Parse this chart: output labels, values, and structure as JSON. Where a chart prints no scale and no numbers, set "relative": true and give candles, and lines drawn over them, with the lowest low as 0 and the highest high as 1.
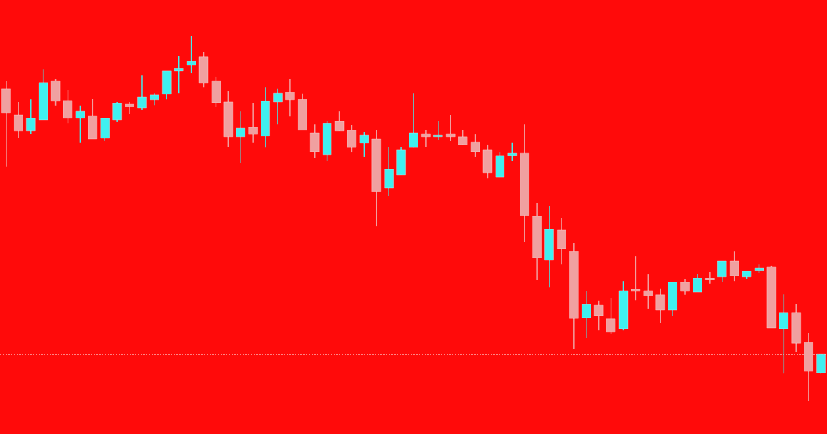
{
  "chart_data": {
    "type": "candlestick",
    "relative": true,
    "categories": [
      null,
      null,
      null,
      null,
      null,
      null,
      null,
      null,
      null,
      null,
      null,
      null,
      null,
      null,
      null,
      null,
      null,
      null,
      null,
      null,
      null,
      null,
      null,
      null,
      null,
      null,
      null,
      null,
      null,
      null,
      null,
      null,
      null,
      null,
      null,
      null,
      null,
      null,
      null,
      null,
      null,
      null,
      null,
      null,
      null,
      null,
      null,
      null,
      null,
      null,
      null,
      null,
      null,
      null,
      null,
      null,
      null,
      null,
      null,
      null,
      null,
      null,
      null,
      null,
      null,
      null,
      null
    ],
    "ohlc": [
      [
        0.855,
        0.877,
        0.642,
        0.789
      ],
      [
        0.783,
        0.819,
        0.719,
        0.74
      ],
      [
        0.74,
        0.826,
        0.73,
        0.774
      ],
      [
        0.77,
        0.909,
        0.77,
        0.872
      ],
      [
        0.877,
        0.883,
        0.808,
        0.821
      ],
      [
        0.823,
        0.853,
        0.76,
        0.774
      ],
      [
        0.774,
        0.808,
        0.708,
        0.794
      ],
      [
        0.781,
        0.828,
        0.717,
        0.717
      ],
      [
        0.719,
        0.774,
        0.713,
        0.774
      ],
      [
        0.77,
        0.819,
        0.764,
        0.815
      ],
      [
        0.813,
        0.819,
        0.787,
        0.806
      ],
      [
        0.802,
        0.892,
        0.796,
        0.832
      ],
      [
        0.825,
        0.843,
        0.809,
        0.838
      ],
      [
        0.84,
        0.904,
        0.826,
        0.904
      ],
      [
        0.904,
        0.945,
        0.843,
        0.911
      ],
      [
        0.919,
        1,
        0.898,
        0.93
      ],
      [
        0.942,
        0.955,
        0.858,
        0.87
      ],
      [
        0.877,
        0.887,
        0.804,
        0.817
      ],
      [
        0.819,
        0.849,
        0.696,
        0.723
      ],
      [
        0.723,
        0.794,
        0.651,
        0.747
      ],
      [
        0.749,
        0.815,
        0.708,
        0.73
      ],
      [
        0.725,
        0.858,
        0.694,
        0.821
      ],
      [
        0.819,
        0.855,
        0.758,
        0.843
      ],
      [
        0.845,
        0.883,
        0.779,
        0.825
      ],
      [
        0.826,
        0.842,
        0.742,
        0.742
      ],
      [
        0.734,
        0.758,
        0.666,
        0.683
      ],
      [
        0.674,
        0.766,
        0.657,
        0.76
      ],
      [
        0.766,
        0.794,
        0.74,
        0.74
      ],
      [
        0.742,
        0.755,
        0.681,
        0.694
      ],
      [
        0.706,
        0.736,
        0.668,
        0.728
      ],
      [
        0.717,
        0.743,
        0.479,
        0.574
      ],
      [
        0.583,
        0.696,
        0.562,
        0.634
      ],
      [
        0.619,
        0.696,
        0.619,
        0.687
      ],
      [
        0.694,
        0.843,
        0.694,
        0.734
      ],
      [
        0.732,
        0.743,
        0.696,
        0.723
      ],
      [
        0.723,
        0.766,
        0.715,
        0.728
      ],
      [
        0.732,
        0.783,
        0.713,
        0.723
      ],
      [
        0.723,
        0.743,
        0.702,
        0.702
      ],
      [
        0.709,
        0.73,
        0.668,
        0.683
      ],
      [
        0.687,
        0.702,
        0.609,
        0.625
      ],
      [
        0.613,
        0.681,
        0.613,
        0.672
      ],
      [
        0.672,
        0.708,
        0.658,
        0.679
      ],
      [
        0.679,
        0.758,
        0.434,
        0.508
      ],
      [
        0.506,
        0.543,
        0.33,
        0.392
      ],
      [
        0.385,
        0.534,
        0.311,
        0.47
      ],
      [
        0.468,
        0.502,
        0.375,
        0.417
      ],
      [
        0.409,
        0.432,
        0.142,
        0.226
      ],
      [
        0.228,
        0.302,
        0.172,
        0.264
      ],
      [
        0.262,
        0.274,
        0.194,
        0.234
      ],
      [
        0.225,
        0.281,
        0.183,
        0.189
      ],
      [
        0.198,
        0.328,
        0.194,
        0.302
      ],
      [
        0.306,
        0.396,
        0.275,
        0.3
      ],
      [
        0.302,
        0.347,
        0.253,
        0.289
      ],
      [
        0.291,
        0.308,
        0.213,
        0.249
      ],
      [
        0.249,
        0.325,
        0.234,
        0.325
      ],
      [
        0.325,
        0.334,
        0.291,
        0.3
      ],
      [
        0.298,
        0.347,
        0.298,
        0.336
      ],
      [
        0.336,
        0.353,
        0.321,
        0.332
      ],
      [
        0.34,
        0.383,
        0.326,
        0.383
      ],
      [
        0.383,
        0.409,
        0.328,
        0.343
      ],
      [
        0.34,
        0.355,
        0.334,
        0.355
      ],
      [
        0.357,
        0.375,
        0.349,
        0.364
      ],
      [
        0.368,
        0.37,
        0.2,
        0.2
      ],
      [
        0.198,
        0.292,
        0.075,
        0.242
      ],
      [
        0.242,
        0.264,
        0.134,
        0.158
      ],
      [
        0.16,
        0.185,
        0,
        0.081
      ],
      [
        0.077,
        0.128,
        0.075,
        0.128
      ]
    ],
    "colors": [
      "#f0a0a0",
      "#f0a0a0",
      "#40f0f0",
      "#40f0f0",
      "#f0a0a0",
      "#f0a0a0",
      "#40f0f0",
      "#f0a0a0",
      "#40f0f0",
      "#40f0f0",
      "#f0a0a0",
      "#40f0f0",
      "#40f0f0",
      "#40f0f0",
      "#40f0f0",
      "#40f0f0",
      "#f0a0a0",
      "#f0a0a0",
      "#f0a0a0",
      "#40f0f0",
      "#f0a0a0",
      "#40f0f0",
      "#40f0f0",
      "#f0a0a0",
      "#f0a0a0",
      "#f0a0a0",
      "#40f0f0",
      "#f0a0a0",
      "#f0a0a0",
      "#40f0f0",
      "#f0a0a0",
      "#40f0f0",
      "#40f0f0",
      "#40f0f0",
      "#f0a0a0",
      "#40f0f0",
      "#f0a0a0",
      "#f0a0a0",
      "#f0a0a0",
      "#f0a0a0",
      "#40f0f0",
      "#40f0f0",
      "#f0a0a0",
      "#f0a0a0",
      "#40f0f0",
      "#f0a0a0",
      "#f0a0a0",
      "#40f0f0",
      "#f0a0a0",
      "#f0a0a0",
      "#40f0f0",
      "#f0a0a0",
      "#f0a0a0",
      "#f0a0a0",
      "#40f0f0",
      "#f0a0a0",
      "#40f0f0",
      "#f0a0a0",
      "#40f0f0",
      "#f0a0a0",
      "#40f0f0",
      "#40f0f0",
      "#f0a0a0",
      "#40f0f0",
      "#f0a0a0",
      "#f0a0a0",
      "#40f0f0"
    ],
    "ref_lines": [
      {
        "axis": "y",
        "value": 0.126,
        "color": "#ffffff",
        "line_style": "dotted"
      }
    ]
  }
}
